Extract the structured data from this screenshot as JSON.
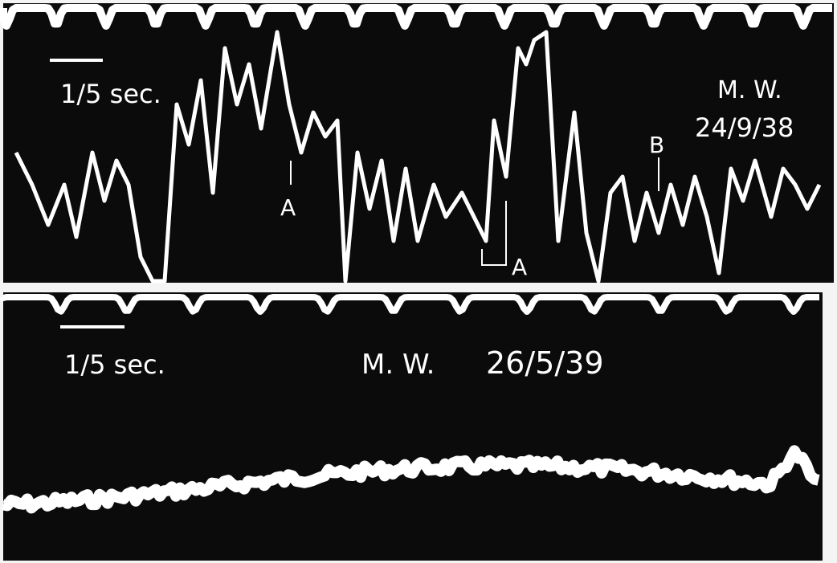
{
  "panels": [
    {
      "scale_label": "1/5 sec.",
      "subject": "M. W.",
      "date": "24/9/38",
      "markers": [
        "A",
        "A",
        "B"
      ]
    },
    {
      "scale_label": "1/5 sec.",
      "subject": "M. W.",
      "date": "26/5/39"
    }
  ]
}
